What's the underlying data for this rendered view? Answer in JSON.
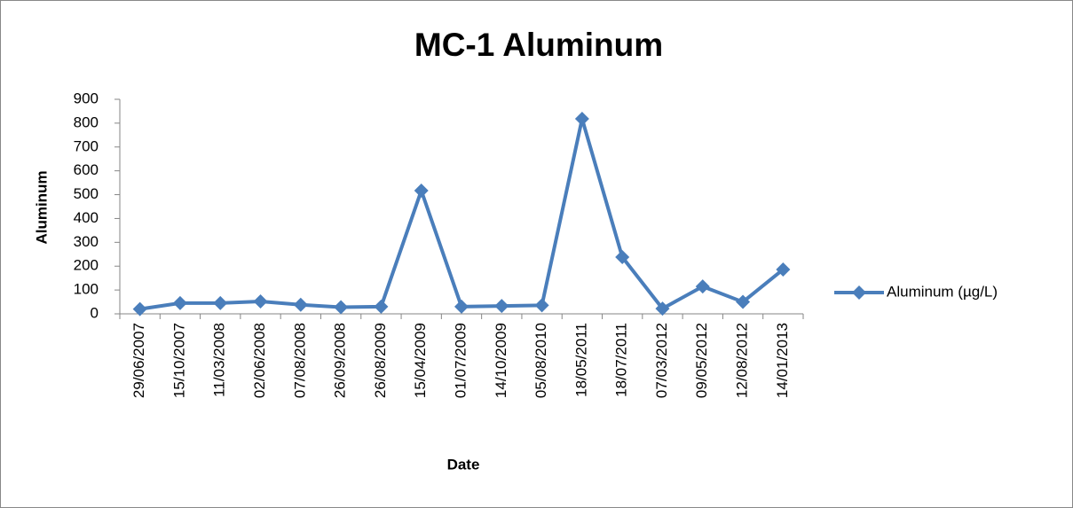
{
  "chart_data": {
    "type": "line",
    "title": "MC-1 Aluminum",
    "x_label": "Date",
    "y_label": "Aluminum",
    "categories": [
      "29/06/2007",
      "15/10/2007",
      "11/03/2008",
      "02/06/2008",
      "07/08/2008",
      "26/09/2008",
      "26/08/2009",
      "15/04/2009",
      "01/07/2009",
      "14/10/2009",
      "05/08/2010",
      "18/05/2011",
      "18/07/2011",
      "07/03/2012",
      "09/05/2012",
      "12/08/2012",
      "14/01/2013"
    ],
    "series": [
      {
        "name": "Aluminum (µg/L)",
        "color": "#4a7ebb",
        "values": [
          20,
          45,
          45,
          52,
          38,
          28,
          30,
          517,
          30,
          33,
          36,
          818,
          238,
          22,
          115,
          50,
          186
        ]
      }
    ],
    "ylim": [
      0,
      900
    ],
    "yticks": [
      0,
      100,
      200,
      300,
      400,
      500,
      600,
      700,
      800,
      900
    ],
    "grid": false,
    "legend": "right"
  }
}
